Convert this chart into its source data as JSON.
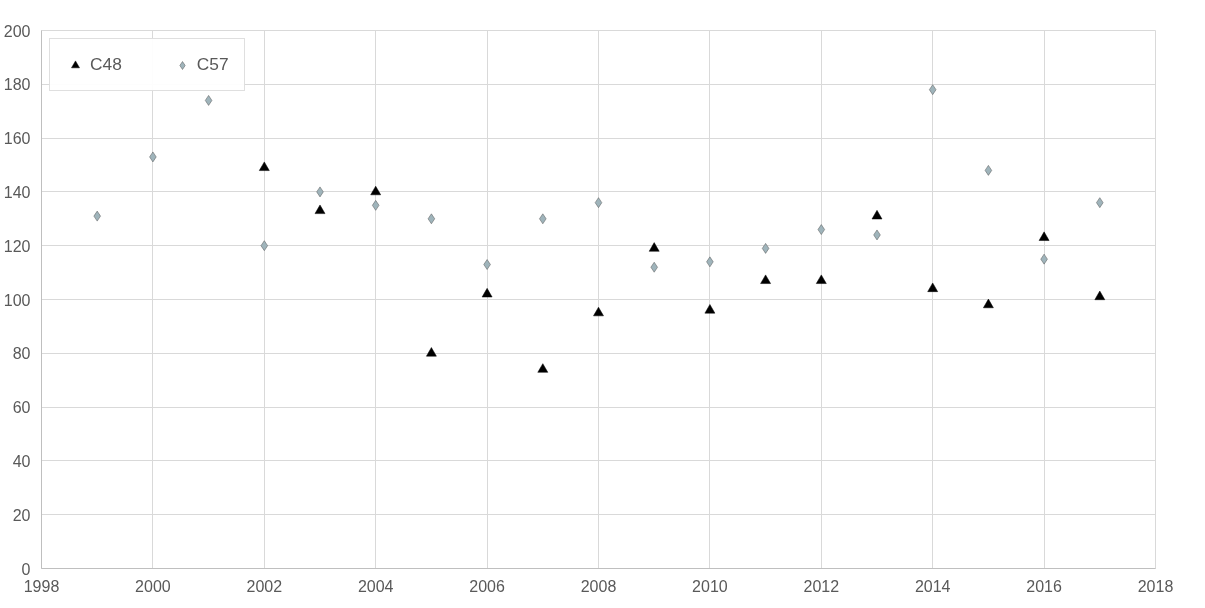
{
  "chart_data": {
    "type": "scatter",
    "x": [
      1999,
      2000,
      2001,
      2002,
      2003,
      2004,
      2005,
      2006,
      2007,
      2008,
      2009,
      2010,
      2011,
      2012,
      2013,
      2014,
      2015,
      2016,
      2017
    ],
    "series": [
      {
        "name": "C48",
        "color": "#000000",
        "marker": "triangle",
        "values": [
          null,
          null,
          null,
          149,
          133,
          140,
          80,
          102,
          74,
          95,
          119,
          96,
          107,
          107,
          131,
          104,
          98,
          123,
          101
        ]
      },
      {
        "name": "C57",
        "color": "#9fb4bb",
        "marker": "diamond",
        "values": [
          131,
          153,
          174,
          120,
          140,
          135,
          130,
          113,
          130,
          136,
          112,
          114,
          119,
          126,
          124,
          178,
          148,
          115,
          136
        ]
      }
    ],
    "xlim": [
      1998,
      2018
    ],
    "xticks": [
      1998,
      2000,
      2002,
      2004,
      2006,
      2008,
      2010,
      2012,
      2014,
      2016,
      2018
    ],
    "ylim": [
      0,
      200
    ],
    "yticks": [
      0,
      20,
      40,
      60,
      80,
      100,
      120,
      140,
      160,
      180,
      200
    ],
    "grid": true,
    "legend": "top left"
  }
}
